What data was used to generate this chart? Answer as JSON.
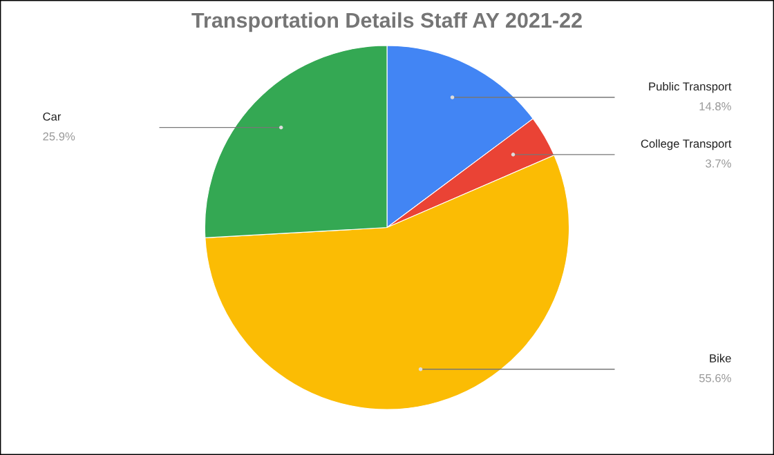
{
  "chart_data": {
    "type": "pie",
    "title": "Transportation Details Staff AY 2021-22",
    "categories": [
      "Public Transport",
      "College Transport",
      "Bike",
      "Car"
    ],
    "values": [
      14.8,
      3.7,
      55.6,
      25.9
    ],
    "colors": [
      "#4285f4",
      "#ea4335",
      "#fbbc04",
      "#34a853"
    ],
    "value_labels": [
      "14.8%",
      "3.7%",
      "55.6%",
      "25.9%"
    ],
    "legend": false
  }
}
